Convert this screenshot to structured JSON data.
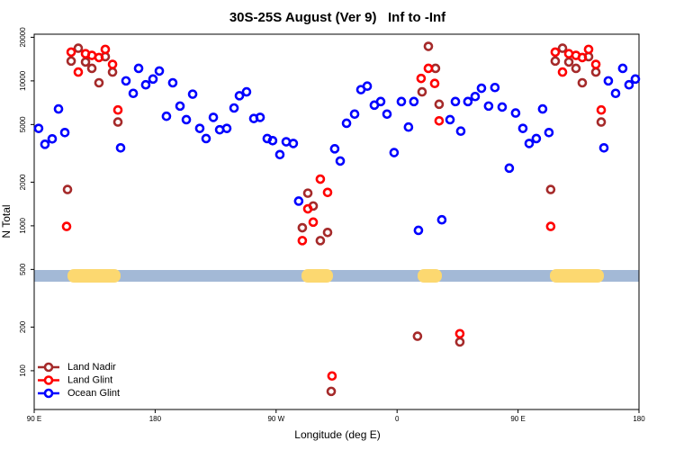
{
  "chart_data": {
    "type": "scatter",
    "title": "30S-25S August (Ver 9)   Inf to -Inf",
    "xlabel": "Longitude (deg E)",
    "ylabel": "N Total",
    "xlim": [
      90,
      540
    ],
    "xticks": [
      {
        "value": 90,
        "label": "90 E"
      },
      180,
      {
        "value": 270,
        "label": "90 W"
      },
      {
        "value": 360,
        "label": "0"
      },
      {
        "value": 450,
        "label": "90 E"
      },
      {
        "value": 540,
        "label": "180"
      }
    ],
    "ylim": [
      54,
      21000
    ],
    "ylog": true,
    "yticks": [
      100,
      200,
      500,
      1000,
      2000,
      5000,
      10000,
      20000
    ],
    "legend": "lower left",
    "series": [
      {
        "name": "Land Nadir",
        "color": "#a52a2a",
        "x": [
          117.5,
          122.8,
          128.2,
          132.9,
          138.2,
          142.9,
          148.3,
          152.3,
          114.8,
          289.5,
          293.6,
          297.6,
          302.9,
          308.3,
          311.0,
          375.2,
          378.6,
          383.3,
          388.6,
          391.3,
          406.7,
          474.3,
          477.7,
          483.1,
          487.8,
          493.1,
          497.8,
          502.5,
          507.9,
          511.9
        ],
        "values": [
          13700,
          16800,
          13500,
          12200,
          9700,
          14700,
          11500,
          5200,
          1780,
          970,
          1680,
          1370,
          790,
          900,
          72,
          173,
          8400,
          17300,
          12200,
          6900,
          158,
          1780,
          13700,
          16800,
          13500,
          12200,
          9700,
          14700,
          11500,
          5200
        ]
      },
      {
        "name": "Land Glint",
        "color": "#ff0000",
        "x": [
          117.5,
          122.8,
          128.2,
          132.9,
          138.2,
          142.9,
          148.3,
          152.3,
          114.1,
          289.5,
          293.6,
          297.6,
          302.9,
          308.3,
          311.6,
          377.9,
          383.3,
          388.0,
          391.3,
          406.7,
          474.3,
          477.7,
          483.1,
          487.8,
          493.1,
          497.8,
          502.5,
          507.9,
          511.9
        ],
        "values": [
          15800,
          11500,
          15400,
          15000,
          14500,
          16500,
          13000,
          6300,
          990,
          790,
          1310,
          1060,
          2100,
          1700,
          92,
          10400,
          12200,
          9600,
          5300,
          180,
          990,
          15800,
          11500,
          15400,
          15000,
          14500,
          16500,
          13000,
          6300
        ]
      },
      {
        "name": "Ocean Glint",
        "color": "#0000ff",
        "x": [
          93.3,
          98.0,
          103.4,
          108.1,
          112.8,
          154.3,
          158.3,
          163.7,
          167.7,
          173.0,
          178.4,
          183.1,
          188.4,
          193.1,
          198.5,
          203.2,
          207.9,
          213.2,
          217.9,
          223.3,
          228.0,
          233.3,
          238.7,
          242.7,
          248.0,
          253.4,
          258.1,
          263.4,
          267.4,
          272.8,
          277.5,
          282.8,
          286.8,
          313.6,
          317.7,
          322.4,
          328.4,
          333.1,
          337.8,
          343.1,
          347.8,
          352.5,
          357.8,
          363.2,
          368.5,
          372.5,
          375.9,
          393.3,
          399.4,
          403.4,
          407.4,
          412.7,
          418.1,
          422.8,
          428.1,
          432.8,
          438.2,
          443.5,
          448.2,
          453.6,
          458.3,
          463.6,
          468.3,
          473.0,
          513.9,
          517.2,
          522.6,
          527.9,
          532.6,
          537.3
        ],
        "values": [
          4700,
          3650,
          3980,
          6400,
          4400,
          3450,
          10000,
          8200,
          12200,
          9400,
          10300,
          11700,
          5700,
          9700,
          6700,
          5400,
          8100,
          4700,
          4000,
          5600,
          4600,
          4700,
          6500,
          7900,
          8400,
          5500,
          5600,
          4000,
          3870,
          3100,
          3800,
          3700,
          1480,
          3400,
          2800,
          5100,
          5900,
          8700,
          9200,
          6800,
          7200,
          5900,
          3200,
          7200,
          4800,
          7200,
          930,
          1100,
          5400,
          7200,
          4500,
          7200,
          7800,
          8900,
          6700,
          9000,
          6600,
          2500,
          6000,
          4700,
          3700,
          4000,
          6400,
          4400,
          3450,
          10000,
          8200,
          12200,
          9400,
          10300
        ]
      }
    ]
  }
}
